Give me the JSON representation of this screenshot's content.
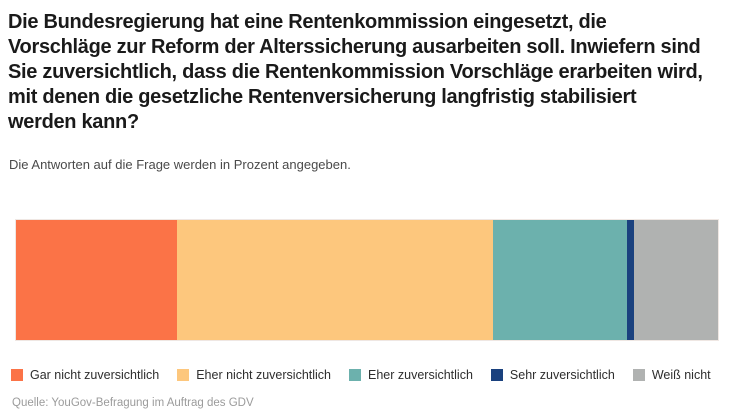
{
  "header": {
    "title": "Die Bundesregierung hat eine Rentenkommission eingesetzt, die Vorschläge zur Reform der Alterssicherung ausarbeiten soll. Inwiefern sind Sie zuversichtlich, dass die Rentenkommission Vorschläge erarbeiten wird, mit denen die gesetzliche Rentenversicherung langfristig stabilisiert werden kann?",
    "subtitle": "Die Antworten auf die Frage werden in Prozent angegeben."
  },
  "chart_data": {
    "type": "bar",
    "variant": "horizontal-stacked-single-bar",
    "title": "Die Bundesregierung hat eine Rentenkommission eingesetzt, die Vorschläge zur Reform der Alterssicherung ausarbeiten soll. Inwiefern sind Sie zuversichtlich, dass die Rentenkommission Vorschläge erarbeiten wird, mit denen die gesetzliche Rentenversicherung langfristig stabilisiert werden kann?",
    "subtitle": "Die Antworten auf die Frage werden in Prozent angegeben.",
    "unit": "percent",
    "categories": [
      "Gar nicht zuversichtlich",
      "Eher nicht zuversichtlich",
      "Eher zuversichtlich",
      "Sehr zuversichtlich",
      "Weiß nicht"
    ],
    "values": [
      23,
      45,
      19,
      1,
      12
    ],
    "colors": [
      "#FB7347",
      "#FDC77D",
      "#6CB1AD",
      "#1A417E",
      "#B0B2B1"
    ],
    "xlabel": "",
    "ylabel": "",
    "axes_visible": false,
    "grid": false,
    "legend_position": "bottom",
    "data_labels": false
  },
  "footer": {
    "source": "Quelle: YouGov-Befragung im Auftrag des GDV"
  }
}
